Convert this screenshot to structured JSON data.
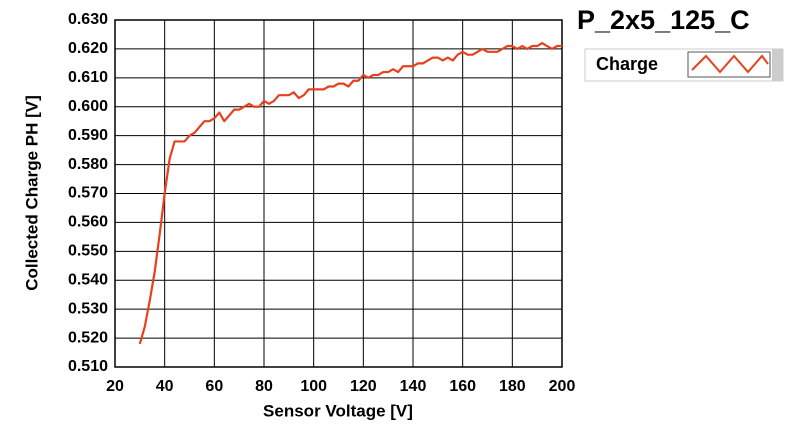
{
  "chart_data": {
    "type": "line",
    "title": "P_2x5_125_C",
    "x_label": "Sensor Voltage [V]",
    "y_label": "Collected Charge PH [V]",
    "x": [
      30,
      32,
      34,
      36,
      38,
      40,
      42,
      44,
      46,
      48,
      50,
      52,
      54,
      56,
      58,
      60,
      62,
      64,
      66,
      68,
      70,
      72,
      74,
      76,
      78,
      80,
      82,
      84,
      86,
      88,
      90,
      92,
      94,
      96,
      98,
      100,
      102,
      104,
      106,
      108,
      110,
      112,
      114,
      116,
      118,
      120,
      122,
      124,
      126,
      128,
      130,
      132,
      134,
      136,
      138,
      140,
      142,
      144,
      146,
      148,
      150,
      152,
      154,
      156,
      158,
      160,
      162,
      164,
      166,
      168,
      170,
      172,
      174,
      176,
      178,
      180,
      182,
      184,
      186,
      188,
      190,
      192,
      194,
      196,
      198,
      200
    ],
    "series": [
      {
        "name": "Charge",
        "color": "#e8401c",
        "values": [
          0.518,
          0.524,
          0.533,
          0.543,
          0.556,
          0.57,
          0.582,
          0.588,
          0.588,
          0.588,
          0.59,
          0.591,
          0.593,
          0.595,
          0.595,
          0.596,
          0.598,
          0.595,
          0.597,
          0.599,
          0.599,
          0.6,
          0.601,
          0.6,
          0.6,
          0.602,
          0.601,
          0.602,
          0.604,
          0.604,
          0.604,
          0.605,
          0.603,
          0.604,
          0.606,
          0.606,
          0.606,
          0.606,
          0.607,
          0.607,
          0.608,
          0.608,
          0.607,
          0.609,
          0.609,
          0.611,
          0.61,
          0.611,
          0.611,
          0.612,
          0.612,
          0.613,
          0.612,
          0.614,
          0.614,
          0.614,
          0.615,
          0.615,
          0.616,
          0.617,
          0.617,
          0.616,
          0.617,
          0.616,
          0.618,
          0.619,
          0.618,
          0.618,
          0.619,
          0.62,
          0.619,
          0.619,
          0.619,
          0.62,
          0.621,
          0.621,
          0.62,
          0.621,
          0.62,
          0.621,
          0.621,
          0.622,
          0.621,
          0.62,
          0.621,
          0.621
        ]
      }
    ],
    "xlim": [
      20,
      200
    ],
    "xticks": [
      20,
      40,
      60,
      80,
      100,
      120,
      140,
      160,
      180,
      200
    ],
    "ylim": [
      0.51,
      0.63
    ],
    "yticks": [
      {
        "value": 0.51,
        "label": "0.510"
      },
      {
        "value": 0.52,
        "label": "0.520"
      },
      {
        "value": 0.53,
        "label": "0.530"
      },
      {
        "value": 0.54,
        "label": "0.540"
      },
      {
        "value": 0.55,
        "label": "0.550"
      },
      {
        "value": 0.56,
        "label": "0.560"
      },
      {
        "value": 0.57,
        "label": "0.570"
      },
      {
        "value": 0.58,
        "label": "0.580"
      },
      {
        "value": 0.59,
        "label": "0.590"
      },
      {
        "value": 0.6,
        "label": "0.600"
      },
      {
        "value": 0.61,
        "label": "0.610"
      },
      {
        "value": 0.62,
        "label": "0.620"
      },
      {
        "value": 0.63,
        "label": "0.630"
      }
    ],
    "grid": true
  }
}
